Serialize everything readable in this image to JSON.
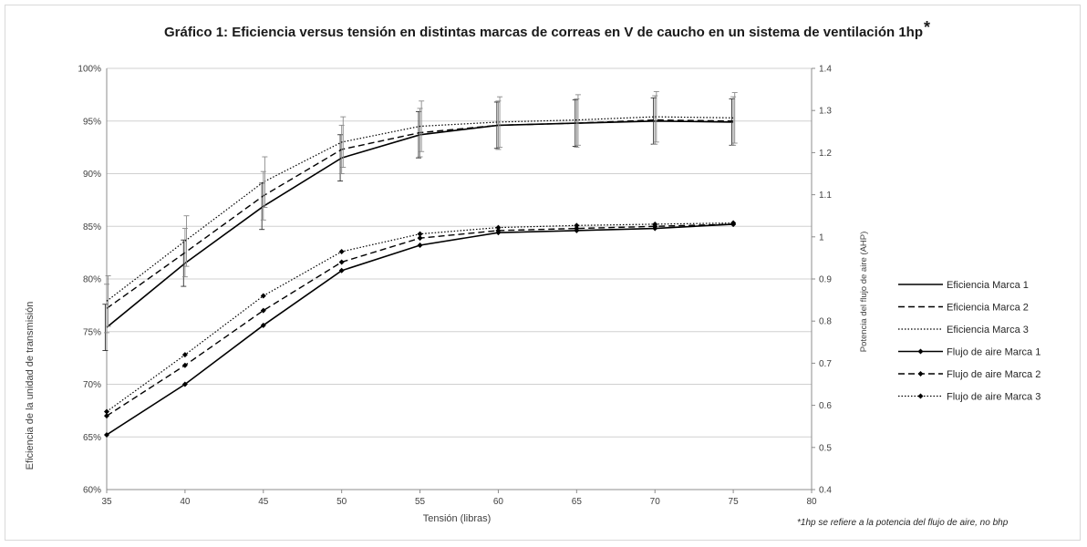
{
  "chart_data": {
    "type": "line",
    "title": "Gráfico 1: Eficiencia versus tensión en distintas marcas de correas en V de caucho en un sistema de ventilación 1hp",
    "title_mark": "*",
    "xlabel": "Tensión (libras)",
    "ylabel": "Eficiencia de la unidad de transmisión",
    "y2label": "Potencia del flujo de aire (AHP)",
    "footnote": "*1hp se refiere a la potencia del flujo de aire, no bhp",
    "xlim": [
      35,
      80
    ],
    "xticks": [
      "35",
      "40",
      "45",
      "50",
      "55",
      "60",
      "65",
      "70",
      "75",
      "80"
    ],
    "ylim": [
      60,
      100
    ],
    "yticks": [
      "60%",
      "65%",
      "70%",
      "75%",
      "80%",
      "85%",
      "90%",
      "95%",
      "100%"
    ],
    "y2lim": [
      0.4,
      1.4
    ],
    "y2ticks": [
      "0.4",
      "0.5",
      "0.6",
      "0.7",
      "0.8",
      "0.9",
      "1",
      "1.1",
      "1.2",
      "1.3",
      "1.4"
    ],
    "grid": true,
    "legend_position": "right",
    "x": [
      35,
      40,
      45,
      50,
      55,
      60,
      65,
      70,
      75
    ],
    "series": [
      {
        "name": "Eficiencia Marca 1",
        "axis": "left",
        "style": "solid",
        "markers": false,
        "values": [
          75.4,
          81.5,
          86.9,
          91.5,
          93.7,
          94.6,
          94.8,
          95.0,
          94.9
        ],
        "error": [
          2.2,
          2.2,
          2.2,
          2.2,
          2.2,
          2.2,
          2.2,
          2.2,
          2.2
        ]
      },
      {
        "name": "Eficiencia Marca 2",
        "axis": "left",
        "style": "dashed",
        "markers": false,
        "values": [
          77.2,
          82.5,
          87.9,
          92.3,
          93.9,
          94.6,
          94.8,
          95.1,
          95.0
        ],
        "error": [
          2.3,
          2.3,
          2.3,
          2.3,
          2.3,
          2.3,
          2.3,
          2.3,
          2.3
        ]
      },
      {
        "name": "Eficiencia Marca 3",
        "axis": "left",
        "style": "dotted",
        "markers": false,
        "values": [
          77.9,
          83.6,
          89.2,
          93.0,
          94.5,
          94.9,
          95.1,
          95.4,
          95.3
        ],
        "error": [
          2.4,
          2.4,
          2.4,
          2.4,
          2.4,
          2.4,
          2.4,
          2.4,
          2.4
        ]
      },
      {
        "name": "Flujo de aire Marca 1",
        "axis": "right",
        "style": "solid",
        "markers": true,
        "values": [
          0.53,
          0.65,
          0.79,
          0.92,
          0.98,
          1.01,
          1.015,
          1.02,
          1.03
        ]
      },
      {
        "name": "Flujo de aire Marca 2",
        "axis": "right",
        "style": "dashed",
        "markers": true,
        "values": [
          0.575,
          0.695,
          0.825,
          0.94,
          0.997,
          1.015,
          1.02,
          1.025,
          1.03
        ]
      },
      {
        "name": "Flujo de aire Marca 3",
        "axis": "right",
        "style": "dotted",
        "markers": true,
        "values": [
          0.585,
          0.72,
          0.86,
          0.965,
          1.007,
          1.022,
          1.027,
          1.03,
          1.033
        ]
      }
    ]
  }
}
